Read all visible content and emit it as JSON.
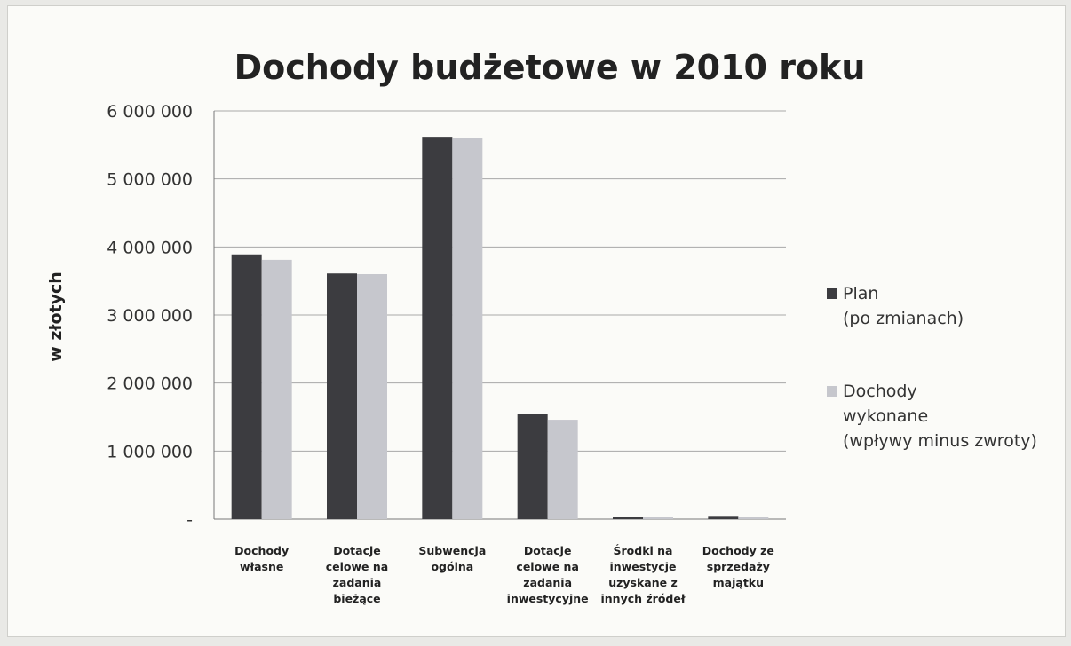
{
  "chart_data": {
    "type": "bar",
    "title": "Dochody budżetowe w 2010 roku",
    "xlabel": "",
    "ylabel": "w złotych",
    "ylim": [
      0,
      6000000
    ],
    "yticks": [
      0,
      1000000,
      2000000,
      3000000,
      4000000,
      5000000,
      6000000
    ],
    "ytick_labels": [
      "-",
      "1 000 000",
      "2 000 000",
      "3 000 000",
      "4 000 000",
      "5 000 000",
      "6 000 000"
    ],
    "categories": [
      [
        "Dochody",
        "własne"
      ],
      [
        "Dotacje",
        "celowe na",
        "zadania",
        "bieżące"
      ],
      [
        "Subwencja",
        "ogólna"
      ],
      [
        "Dotacje",
        "celowe na",
        "zadania",
        "inwestycyjne"
      ],
      [
        "Środki na",
        "inwestycje",
        "uzyskane z",
        "innych źródeł"
      ],
      [
        "Dochody ze",
        "sprzedaży",
        "majątku"
      ]
    ],
    "series": [
      {
        "name": [
          "Plan",
          "(po zmianach)"
        ],
        "color": "#3c3c40",
        "values": [
          3890000,
          3610000,
          5620000,
          1540000,
          25000,
          35000
        ]
      },
      {
        "name": [
          "Dochody",
          "wykonane",
          "(wpływy minus zwroty)"
        ],
        "color": "#c6c7cd",
        "values": [
          3810000,
          3600000,
          5600000,
          1460000,
          5000,
          15000
        ]
      }
    ],
    "grid": true,
    "legend": "right"
  }
}
